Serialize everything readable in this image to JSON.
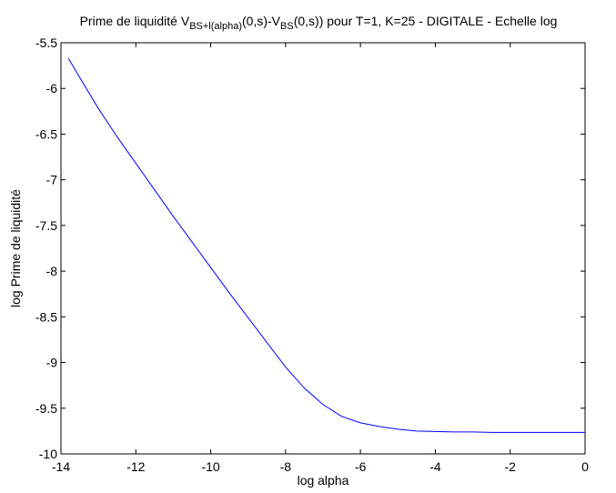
{
  "chart_data": {
    "type": "line",
    "title": {
      "prefix": "Prime de liquidité V",
      "sub1": "BS+l(alpha)",
      "mid": "(0,s)-V",
      "sub2": "BS",
      "suffix": "(0,s)) pour T=1, K=25 - DIGITALE - Echelle log"
    },
    "xlabel": "log alpha",
    "ylabel": "log Prime de liquidité",
    "xlim": [
      -14,
      0
    ],
    "ylim": [
      -10,
      -5.5
    ],
    "xticks": [
      -14,
      -12,
      -10,
      -8,
      -6,
      -4,
      -2,
      0
    ],
    "yticks": [
      -10,
      -9.5,
      -9,
      -8.5,
      -8,
      -7.5,
      -7,
      -6.5,
      -6,
      -5.5
    ],
    "grid": false,
    "line_color": "#0000ff",
    "series": [
      {
        "x": [
          -13.8,
          -13.5,
          -13.0,
          -12.5,
          -12.0,
          -11.5,
          -11.0,
          -10.5,
          -10.0,
          -9.5,
          -9.0,
          -8.5,
          -8.0,
          -7.5,
          -7.0,
          -6.5,
          -6.0,
          -5.5,
          -5.0,
          -4.5,
          -4.0,
          -3.5,
          -3.0,
          -2.5,
          -2.0,
          -1.5,
          -1.0,
          -0.5,
          0.0
        ],
        "y": [
          -5.67,
          -5.88,
          -6.22,
          -6.53,
          -6.82,
          -7.11,
          -7.4,
          -7.68,
          -7.96,
          -8.24,
          -8.51,
          -8.78,
          -9.05,
          -9.28,
          -9.46,
          -9.59,
          -9.66,
          -9.7,
          -9.73,
          -9.75,
          -9.755,
          -9.76,
          -9.76,
          -9.765,
          -9.765,
          -9.765,
          -9.765,
          -9.765,
          -9.765
        ]
      }
    ]
  }
}
